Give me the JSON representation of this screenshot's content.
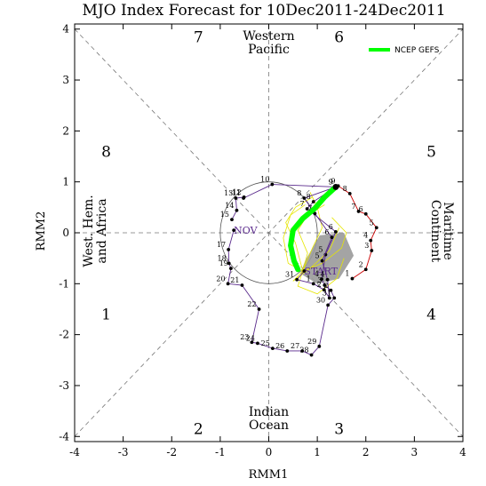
{
  "chart_data": {
    "type": "scatter",
    "title": "MJO Index Forecast for 10Dec2011-24Dec2011",
    "xlabel": "RMM1",
    "ylabel": "RMM2",
    "xlim": [
      -4,
      4
    ],
    "ylim": [
      -4.1,
      4.1
    ],
    "xticks": [
      "-4",
      "-3",
      "-2",
      "-1",
      "0",
      "1",
      "2",
      "3",
      "4"
    ],
    "yticks": [
      "-4",
      "-3",
      "-2",
      "-1",
      "0",
      "1",
      "2",
      "3",
      "4"
    ],
    "legend": {
      "label": "NCEP GEFS",
      "color": "#00ff00",
      "position": "top-right"
    },
    "phase_numbers": [
      {
        "label": "1",
        "x": -3.35,
        "y": -1.6
      },
      {
        "label": "2",
        "x": -1.45,
        "y": -3.85
      },
      {
        "label": "3",
        "x": 1.45,
        "y": -3.85
      },
      {
        "label": "4",
        "x": 3.35,
        "y": -1.6
      },
      {
        "label": "5",
        "x": 3.35,
        "y": 1.6
      },
      {
        "label": "6",
        "x": 1.45,
        "y": 3.85
      },
      {
        "label": "7",
        "x": -1.45,
        "y": 3.85
      },
      {
        "label": "8",
        "x": -3.35,
        "y": 1.6
      }
    ],
    "region_labels": {
      "top": [
        "Western",
        "Pacific"
      ],
      "bottom": [
        "Indian",
        "Ocean"
      ],
      "left": [
        "West. Hem.",
        "and Africa"
      ],
      "right": [
        "Maritime",
        "Continent"
      ]
    },
    "series": [
      {
        "name": "observed-november",
        "color": "#5a2a8c",
        "points": [
          {
            "label": "NOV",
            "x": -0.72,
            "y": 0.05
          },
          {
            "label": "17",
            "x": -0.83,
            "y": -0.33
          },
          {
            "label": "18",
            "x": -0.82,
            "y": -0.6
          },
          {
            "label": "19",
            "x": -0.78,
            "y": -0.7
          },
          {
            "label": "20",
            "x": -0.84,
            "y": -1.0
          },
          {
            "label": "21",
            "x": -0.55,
            "y": -1.03
          },
          {
            "label": "22",
            "x": -0.2,
            "y": -1.5
          },
          {
            "label": "23",
            "x": -0.35,
            "y": -2.15
          },
          {
            "label": "24",
            "x": -0.23,
            "y": -2.17
          },
          {
            "label": "25",
            "x": 0.08,
            "y": -2.27
          },
          {
            "label": "26",
            "x": 0.38,
            "y": -2.32
          },
          {
            "label": "27",
            "x": 0.69,
            "y": -2.32
          },
          {
            "label": "28",
            "x": 0.88,
            "y": -2.4
          },
          {
            "label": "29",
            "x": 1.04,
            "y": -2.23
          },
          {
            "label": "30",
            "x": 1.22,
            "y": -1.42
          },
          {
            "label": "1",
            "x": 1.35,
            "y": -1.28
          },
          {
            "label": "2",
            "x": 1.28,
            "y": -1.13
          },
          {
            "label": "3",
            "x": 1.15,
            "y": -1.03
          },
          {
            "label": "4",
            "x": 1.09,
            "y": -0.91
          },
          {
            "label": "5",
            "x": 1.17,
            "y": -0.43
          },
          {
            "label": "6",
            "x": 1.38,
            "y": 0.02
          },
          {
            "label": "7",
            "x": 0.79,
            "y": 0.47
          },
          {
            "label": "8",
            "x": 0.92,
            "y": 0.61
          },
          {
            "label": "9",
            "x": 1.38,
            "y": 0.9
          },
          {
            "label": "10",
            "x": 0.07,
            "y": 0.95
          },
          {
            "label": "11",
            "x": -0.52,
            "y": 0.68
          },
          {
            "label": "12",
            "x": -0.51,
            "y": 0.7
          },
          {
            "label": "13",
            "x": -0.68,
            "y": 0.68
          },
          {
            "label": "14",
            "x": -0.66,
            "y": 0.44
          },
          {
            "label": "15",
            "x": -0.76,
            "y": 0.26
          }
        ]
      },
      {
        "name": "observed-december",
        "color": "#5a2a8c",
        "points": [
          {
            "label": "START",
            "x": 0.73,
            "y": -0.75
          },
          {
            "label": "31",
            "x": 0.58,
            "y": -0.92
          },
          {
            "label": "1",
            "x": 0.92,
            "y": -1.0
          },
          {
            "label": "2",
            "x": 1.14,
            "y": -1.12
          },
          {
            "label": "3",
            "x": 1.25,
            "y": -1.28
          },
          {
            "label": "4",
            "x": 1.21,
            "y": -0.92
          },
          {
            "label": "5",
            "x": 1.1,
            "y": -0.55
          },
          {
            "label": "6",
            "x": 1.3,
            "y": -0.09
          },
          {
            "label": "7",
            "x": 0.95,
            "y": 0.38
          },
          {
            "label": "8",
            "x": 0.73,
            "y": 0.68
          },
          {
            "label": "9",
            "x": 1.38,
            "y": 0.9
          }
        ]
      },
      {
        "name": "forecast-ensemble-mean",
        "color": "#cc0000",
        "points": [
          {
            "label": "1",
            "x": 1.72,
            "y": -0.9
          },
          {
            "label": "2",
            "x": 2.0,
            "y": -0.72
          },
          {
            "label": "3",
            "x": 2.12,
            "y": -0.35
          },
          {
            "label": "4",
            "x": 2.1,
            "y": -0.15
          },
          {
            "label": "5",
            "x": 2.22,
            "y": 0.1
          },
          {
            "label": "6",
            "x": 2.0,
            "y": 0.37
          },
          {
            "label": "7",
            "x": 1.85,
            "y": 0.42
          },
          {
            "label": "8",
            "x": 1.67,
            "y": 0.77
          },
          {
            "label": "9",
            "x": 1.43,
            "y": 0.92
          }
        ]
      },
      {
        "name": "NCEP GEFS",
        "color": "#00ff00",
        "points": [
          {
            "x": 0.6,
            "y": -0.72
          },
          {
            "x": 0.52,
            "y": -0.55
          },
          {
            "x": 0.45,
            "y": -0.25
          },
          {
            "x": 0.5,
            "y": 0.05
          },
          {
            "x": 0.7,
            "y": 0.28
          },
          {
            "x": 0.95,
            "y": 0.48
          },
          {
            "x": 1.15,
            "y": 0.7
          },
          {
            "x": 1.38,
            "y": 0.9
          }
        ]
      }
    ]
  }
}
